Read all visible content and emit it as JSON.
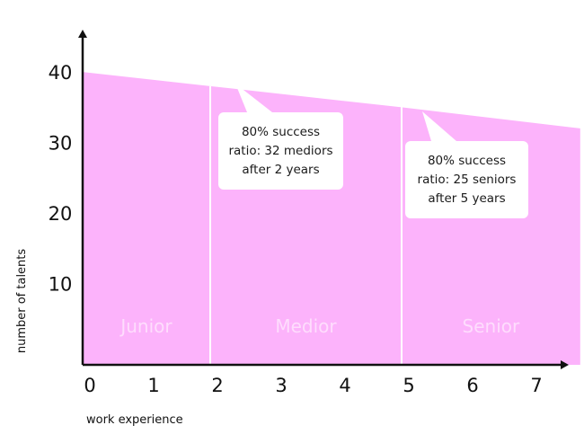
{
  "chart_data": {
    "type": "area",
    "title": "",
    "xlabel": "work experience",
    "ylabel": "number of talents",
    "xlim": [
      0,
      7.8
    ],
    "ylim": [
      -1.5,
      46
    ],
    "x_ticks": [
      0,
      1,
      2,
      3,
      4,
      5,
      6,
      7
    ],
    "y_ticks": [
      10,
      20,
      30,
      40
    ],
    "area": {
      "x": [
        0,
        2,
        5,
        7.8
      ],
      "y": [
        40,
        38,
        35,
        32
      ],
      "color": "#fcb3fb"
    },
    "bands": [
      {
        "label": "Junior",
        "from": 0,
        "to": 2
      },
      {
        "label": "Medior",
        "from": 2,
        "to": 5
      },
      {
        "label": "Senior",
        "from": 5,
        "to": 7.8
      }
    ],
    "annotations": [
      {
        "lines": [
          "80% success",
          "ratio: 32 mediors",
          "after 2 years"
        ],
        "x": 2
      },
      {
        "lines": [
          "80% success",
          "ratio: 25 seniors",
          "after 5 years"
        ],
        "x": 5
      }
    ],
    "grid": false,
    "legend": "none"
  }
}
